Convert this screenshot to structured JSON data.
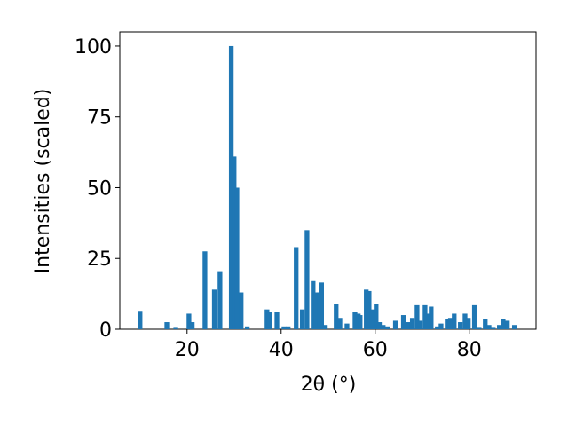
{
  "chart_data": {
    "type": "bar",
    "x_label": "2θ (°)",
    "y_label": "Intensities (scaled)",
    "color": "#1f77b4",
    "x": [
      10.0,
      15.7,
      17.6,
      20.4,
      21.1,
      23.8,
      25.8,
      27.0,
      29.4,
      30.0,
      30.6,
      31.5,
      32.8,
      37.0,
      37.5,
      39.1,
      40.6,
      41.5,
      43.2,
      44.5,
      45.5,
      46.8,
      47.5,
      48.1,
      48.6,
      49.4,
      51.7,
      52.5,
      54.0,
      55.7,
      56.4,
      56.8,
      58.1,
      58.7,
      59.4,
      60.2,
      60.9,
      61.7,
      62.6,
      64.3,
      66.0,
      67.0,
      67.9,
      68.9,
      69.6,
      70.6,
      71.1,
      71.9,
      73.2,
      74.0,
      75.3,
      76.0,
      76.8,
      78.1,
      79.1,
      79.8,
      81.1,
      82.1,
      83.4,
      84.2,
      85.1,
      86.4,
      87.2,
      88.1,
      89.6
    ],
    "values": [
      6.5,
      2.5,
      0.5,
      5.5,
      2.5,
      27.5,
      14,
      20.5,
      100,
      61,
      50,
      13,
      1,
      7,
      6,
      6,
      1,
      1,
      29,
      7,
      35,
      17,
      13,
      13,
      16.5,
      1.5,
      9,
      4,
      2,
      6,
      5.5,
      5,
      14,
      13.5,
      7,
      9,
      2.5,
      1.5,
      1,
      3,
      5,
      2.5,
      4,
      8.5,
      3,
      8.5,
      5.5,
      8,
      1,
      2,
      3.5,
      4,
      5.5,
      2.5,
      5.5,
      4,
      8.5,
      0.5,
      3.5,
      1.5,
      0.5,
      1.5,
      3.5,
      3,
      1.5
    ],
    "xlim": [
      5.7,
      94.2
    ],
    "ylim": [
      0,
      105
    ],
    "xticks": [
      20,
      40,
      60,
      80
    ],
    "yticks": [
      0,
      25,
      50,
      75,
      100
    ]
  }
}
